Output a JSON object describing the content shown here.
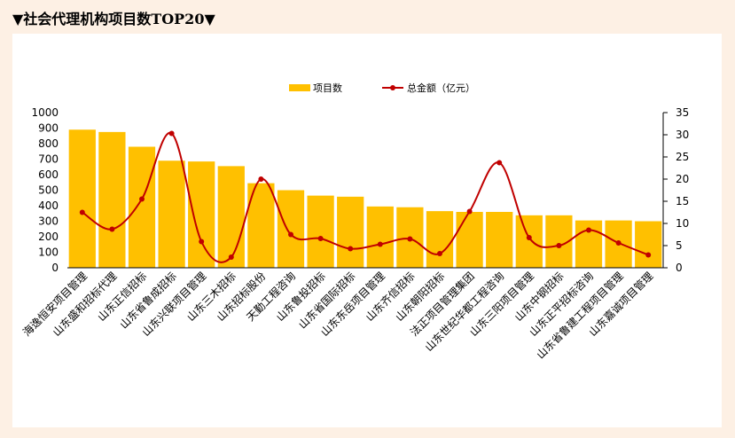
{
  "title": "▼社会代理机构项目数TOP20▼",
  "colors": {
    "bar": "#ffc000",
    "line": "#c00000",
    "background": "#fdf0e4",
    "panel": "#ffffff"
  },
  "chart_data": {
    "type": "bar",
    "categories": [
      "海逸恒安项目管理",
      "山东盛和招标代理",
      "山东正信招标",
      "山东省鲁成招标",
      "山东兴联项目管理",
      "山东三木招标",
      "山东招标股份",
      "天勤工程咨询",
      "山东鲁投招标",
      "山东省国际招标",
      "山东东岳项目管理",
      "山东齐信招标",
      "山东朝阳招标",
      "法正项目管理集团",
      "山东世纪华都工程咨询",
      "山东三阳项目管理",
      "山东中钢招标",
      "山东正平招标咨询",
      "山东省鲁建工程项目管理",
      "山东嘉诚项目管理"
    ],
    "series": [
      {
        "name": "项目数",
        "type": "bar",
        "axis": "left",
        "values": [
          890,
          875,
          780,
          690,
          685,
          655,
          545,
          500,
          465,
          458,
          395,
          390,
          365,
          360,
          360,
          338,
          338,
          305,
          305,
          300
        ]
      },
      {
        "name": "总金额（亿元）",
        "type": "line",
        "axis": "right",
        "values": [
          12.5,
          8.7,
          15.5,
          30.3,
          5.9,
          2.4,
          20.0,
          7.5,
          6.6,
          4.3,
          5.3,
          6.5,
          3.2,
          12.7,
          23.7,
          6.8,
          5.0,
          8.5,
          5.6,
          2.9
        ]
      }
    ],
    "yleft": {
      "lim": [
        0,
        1000
      ],
      "ticks": [
        "0",
        "100",
        "200",
        "300",
        "400",
        "500",
        "600",
        "700",
        "800",
        "900",
        "1000"
      ]
    },
    "yright": {
      "lim": [
        0,
        35
      ],
      "ticks": [
        "0",
        "5",
        "10",
        "15",
        "20",
        "25",
        "30",
        "35"
      ]
    },
    "legend": "top-center",
    "grid": false
  }
}
